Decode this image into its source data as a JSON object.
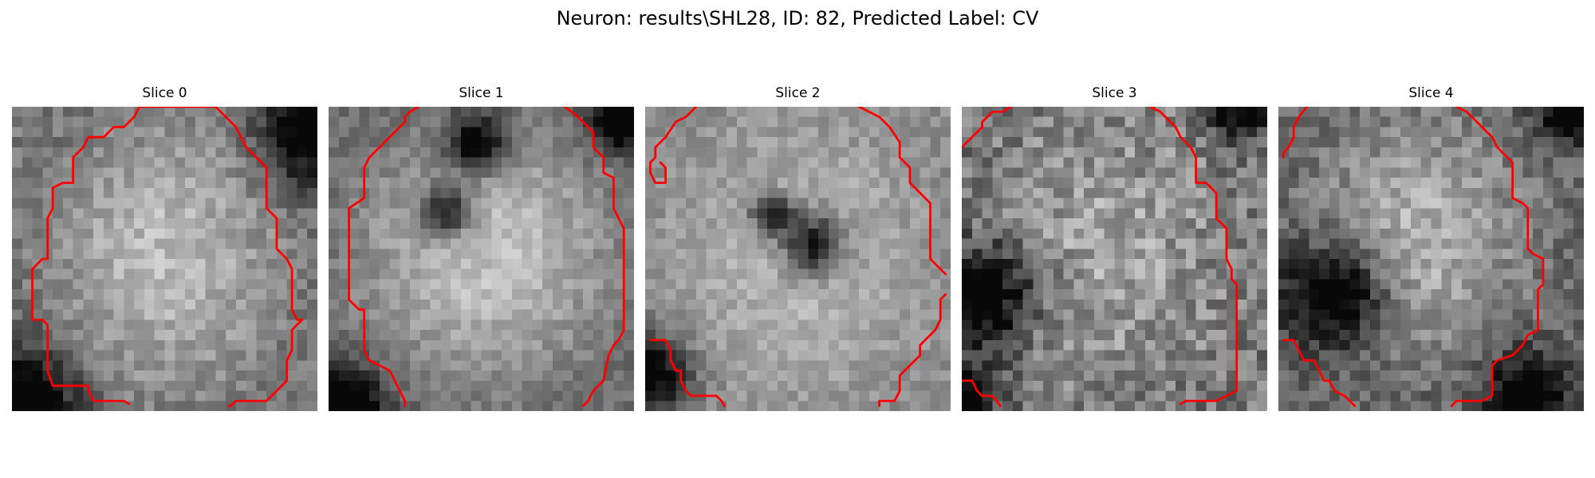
{
  "figure": {
    "title": "Neuron: results\\SHL28, ID: 82, Predicted Label: CV",
    "contour_color": "#ff0000"
  },
  "panels": [
    {
      "title": "Slice 0"
    },
    {
      "title": "Slice 1"
    },
    {
      "title": "Slice 2"
    },
    {
      "title": "Slice 3"
    },
    {
      "title": "Slice 4"
    }
  ]
}
